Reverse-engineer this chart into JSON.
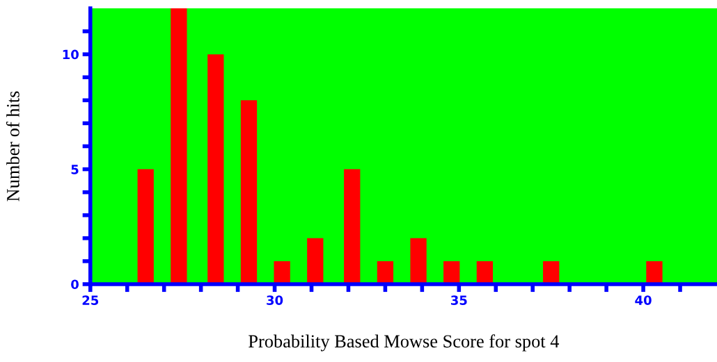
{
  "chart_data": {
    "type": "bar",
    "xlabel": "Probability Based Mowse Score for spot 4",
    "ylabel": "Number of hits",
    "x": [
      26.5,
      27.4,
      28.4,
      29.3,
      30.2,
      31.1,
      32.1,
      33.0,
      33.9,
      34.8,
      35.7,
      37.5,
      40.3
    ],
    "values": [
      5,
      12,
      10,
      8,
      1,
      2,
      5,
      1,
      2,
      1,
      1,
      1,
      1
    ],
    "color": "#ff0000",
    "xlim": [
      25,
      42
    ],
    "xticks": [
      25,
      {
        "value": 26,
        "label": null
      },
      {
        "value": 27,
        "label": null
      },
      {
        "value": 28,
        "label": null
      },
      {
        "value": 29,
        "label": null
      },
      30,
      {
        "value": 31,
        "label": null
      },
      {
        "value": 32,
        "label": null
      },
      {
        "value": 33,
        "label": null
      },
      {
        "value": 34,
        "label": null
      },
      35,
      {
        "value": 36,
        "label": null
      },
      {
        "value": 37,
        "label": null
      },
      {
        "value": 38,
        "label": null
      },
      {
        "value": 39,
        "label": null
      },
      40,
      {
        "value": 41,
        "label": null
      }
    ],
    "ylim": [
      0,
      12
    ],
    "yticks": [
      0,
      {
        "value": 1,
        "label": null
      },
      {
        "value": 2,
        "label": null
      },
      {
        "value": 3,
        "label": null
      },
      {
        "value": 4,
        "label": null
      },
      5,
      {
        "value": 6,
        "label": null
      },
      {
        "value": 7,
        "label": null
      },
      {
        "value": 8,
        "label": null
      },
      {
        "value": 9,
        "label": null
      },
      10,
      {
        "value": 11,
        "label": null
      }
    ]
  }
}
